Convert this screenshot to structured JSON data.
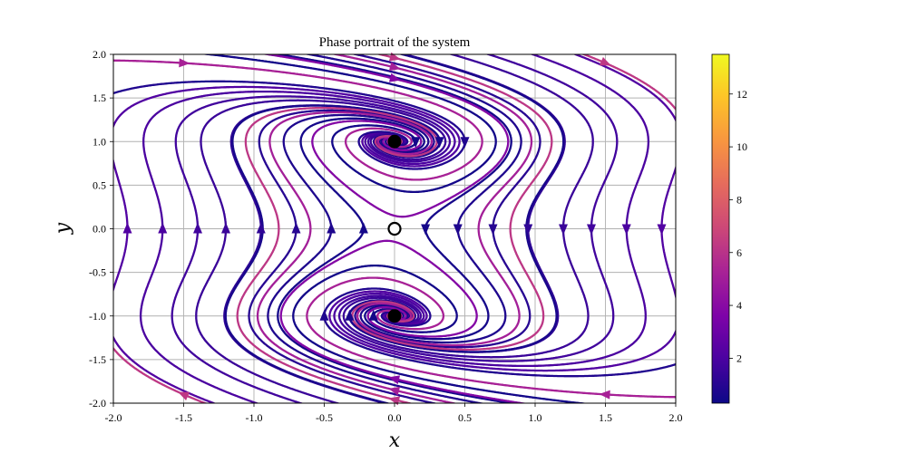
{
  "chart_data": {
    "type": "streamplot",
    "title": "Phase portrait of the system",
    "xlabel": "x",
    "ylabel": "y",
    "xlim": [
      -2.0,
      2.0
    ],
    "ylim": [
      -2.0,
      2.0
    ],
    "xticks": [
      "-2.0",
      "-1.5",
      "-1.0",
      "-0.5",
      "0.0",
      "0.5",
      "1.0",
      "1.5",
      "2.0"
    ],
    "yticks": [
      "-2.0",
      "-1.5",
      "-1.0",
      "-0.5",
      "0.0",
      "0.5",
      "1.0",
      "1.5",
      "2.0"
    ],
    "grid": true,
    "colormap": "plasma",
    "colorbar": {
      "range": [
        0.3,
        13.5
      ],
      "ticks": [
        "2",
        "4",
        "6",
        "8",
        "10",
        "12"
      ]
    },
    "equilibria": [
      {
        "x": 0.0,
        "y": 1.0,
        "kind": "stable",
        "marker": "filled"
      },
      {
        "x": 0.0,
        "y": -1.0,
        "kind": "stable",
        "marker": "filled"
      },
      {
        "x": 0.0,
        "y": 0.0,
        "kind": "saddle",
        "marker": "hollow"
      }
    ]
  }
}
